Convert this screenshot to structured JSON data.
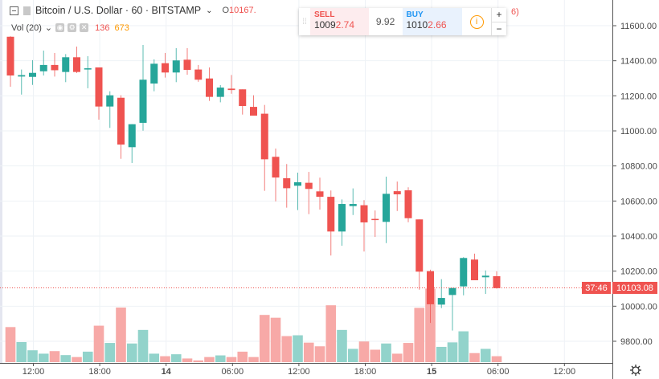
{
  "header": {
    "symbol_title": "Bitcoin / U.S. Dollar · 60 · BITSTAMP",
    "open_label": "O",
    "open_value": "10167.",
    "right_fragment": "6)"
  },
  "volume_legend": {
    "label": "Vol (20)",
    "volume": "136",
    "ma": "673"
  },
  "trade_widget": {
    "sell_label": "SELL",
    "sell_price_main": "1009",
    "sell_price_hi": "2.74",
    "spread": "9.92",
    "buy_label": "BUY",
    "buy_price_main": "1010",
    "buy_price_hi": "2.66",
    "plus": "+",
    "minus": "−"
  },
  "colors": {
    "up": "#26a69a",
    "down": "#ef5350",
    "vol_up": "#92d3cb",
    "vol_down": "#f7a9a7",
    "grid": "#eef2f6",
    "last_price": "#ef5350",
    "info": "#ff9800"
  },
  "chart_data": {
    "type": "candlestick",
    "y_axis_ticks": [
      "11600.00",
      "11400.00",
      "11200.00",
      "11000.00",
      "10800.00",
      "10600.00",
      "10400.00",
      "10200.00",
      "10000.00",
      "9800.00"
    ],
    "x_axis_ticks": [
      "12:00",
      "18:00",
      "14",
      "06:00",
      "12:00",
      "18:00",
      "15",
      "06:00",
      "12:00"
    ],
    "last_price": "10103.08",
    "countdown": "37:46",
    "grid": true,
    "ohlc": [
      [
        11537,
        11540,
        11252,
        11316
      ],
      [
        11310,
        11350,
        11207,
        11318
      ],
      [
        11308,
        11403,
        11262,
        11331
      ],
      [
        11340,
        11458,
        11316,
        11376
      ],
      [
        11376,
        11444,
        11310,
        11346
      ],
      [
        11336,
        11438,
        11278,
        11420
      ],
      [
        11420,
        11481,
        11330,
        11336
      ],
      [
        11350,
        11426,
        11243,
        11357
      ],
      [
        11362,
        11362,
        11064,
        11139
      ],
      [
        11139,
        11226,
        11017,
        11203
      ],
      [
        11189,
        11203,
        10841,
        10922
      ],
      [
        10907,
        11038,
        10817,
        11038
      ],
      [
        11046,
        11490,
        11001,
        11292
      ],
      [
        11270,
        11408,
        11226,
        11383
      ],
      [
        11386,
        11444,
        11304,
        11333
      ],
      [
        11333,
        11472,
        11278,
        11402
      ],
      [
        11406,
        11472,
        11320,
        11348
      ],
      [
        11350,
        11376,
        11280,
        11292
      ],
      [
        11299,
        11362,
        11171,
        11194
      ],
      [
        11194,
        11261,
        11163,
        11247
      ],
      [
        11241,
        11319,
        11212,
        11233
      ],
      [
        11237,
        11237,
        11093,
        11142
      ],
      [
        11137,
        11203,
        11087,
        11087
      ],
      [
        11098,
        11148,
        10658,
        10838
      ],
      [
        10852,
        10899,
        10598,
        10734
      ],
      [
        10730,
        10811,
        10562,
        10673
      ],
      [
        10687,
        10762,
        10548,
        10707
      ],
      [
        10704,
        10766,
        10525,
        10669
      ],
      [
        10655,
        10733,
        10551,
        10624
      ],
      [
        10624,
        10660,
        10289,
        10426
      ],
      [
        10426,
        10609,
        10345,
        10583
      ],
      [
        10571,
        10672,
        10520,
        10583
      ],
      [
        10576,
        10605,
        10312,
        10478
      ],
      [
        10498,
        10546,
        10395,
        10492
      ],
      [
        10481,
        10739,
        10360,
        10641
      ],
      [
        10656,
        10711,
        10543,
        10638
      ],
      [
        10661,
        10678,
        10479,
        10502
      ],
      [
        10495,
        10495,
        10094,
        10197
      ],
      [
        10200,
        10208,
        9905,
        10011
      ],
      [
        10009,
        10154,
        9989,
        10047
      ],
      [
        10064,
        10104,
        9861,
        10104
      ],
      [
        10113,
        10280,
        10062,
        10275
      ],
      [
        10266,
        10300,
        10148,
        10148
      ],
      [
        10165,
        10204,
        10070,
        10174
      ],
      [
        10171,
        10199,
        10100,
        10103
      ]
    ],
    "volume": [
      803,
      460,
      272,
      194,
      253,
      162,
      117,
      240,
      835,
      440,
      1250,
      427,
      738,
      194,
      136,
      181,
      84,
      39,
      117,
      155,
      117,
      240,
      117,
      1081,
      1017,
      596,
      615,
      447,
      363,
      1302,
      738,
      304,
      473,
      285,
      427,
      194,
      440,
      1243,
      1684,
      350,
      453,
      706,
      207,
      304,
      136
    ]
  }
}
